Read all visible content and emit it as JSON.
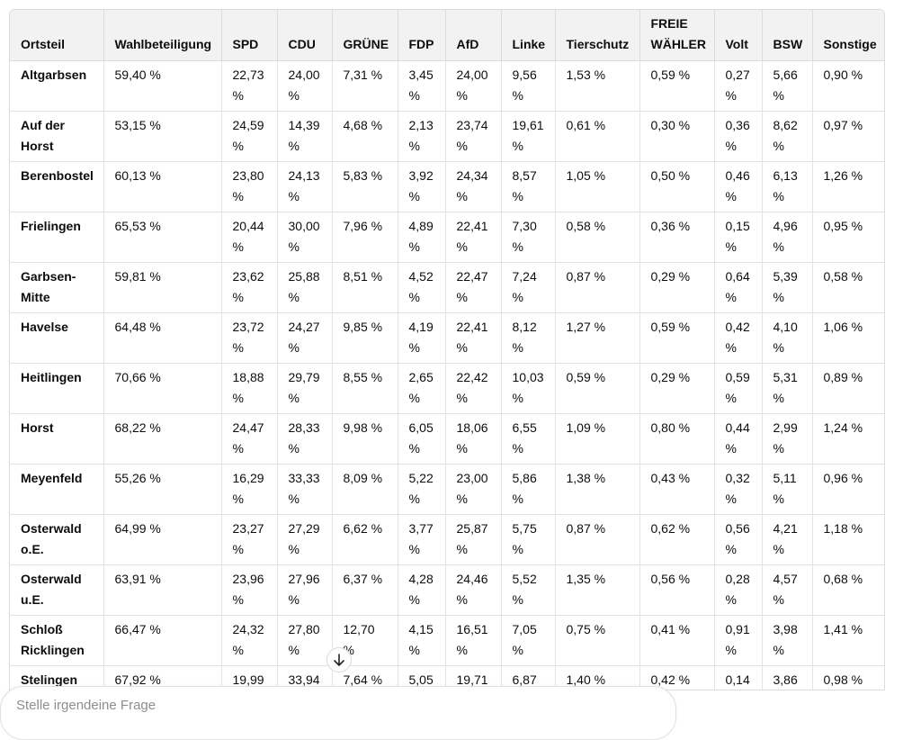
{
  "table": {
    "header": [
      "Ortsteil",
      "Wahlbeteiligung",
      "SPD",
      "CDU",
      "GRÜNE",
      "FDP",
      "AfD",
      "Linke",
      "Tierschutz",
      "FREIE WÄHLER",
      "Volt",
      "BSW",
      "Sonstige"
    ],
    "rows": [
      [
        "Altgarbsen",
        "59,40 %",
        "22,73 %",
        "24,00 %",
        "7,31 %",
        "3,45 %",
        "24,00 %",
        "9,56 %",
        "1,53 %",
        "0,59 %",
        "0,27 %",
        "5,66 %",
        "0,90 %"
      ],
      [
        "Auf der Horst",
        "53,15 %",
        "24,59 %",
        "14,39 %",
        "4,68 %",
        "2,13 %",
        "23,74 %",
        "19,61 %",
        "0,61 %",
        "0,30 %",
        "0,36 %",
        "8,62 %",
        "0,97 %"
      ],
      [
        "Berenbostel",
        "60,13 %",
        "23,80 %",
        "24,13 %",
        "5,83 %",
        "3,92 %",
        "24,34 %",
        "8,57 %",
        "1,05 %",
        "0,50 %",
        "0,46 %",
        "6,13 %",
        "1,26 %"
      ],
      [
        "Frielingen",
        "65,53 %",
        "20,44 %",
        "30,00 %",
        "7,96 %",
        "4,89 %",
        "22,41 %",
        "7,30 %",
        "0,58 %",
        "0,36 %",
        "0,15 %",
        "4,96 %",
        "0,95 %"
      ],
      [
        "Garbsen-Mitte",
        "59,81 %",
        "23,62 %",
        "25,88 %",
        "8,51 %",
        "4,52 %",
        "22,47 %",
        "7,24 %",
        "0,87 %",
        "0,29 %",
        "0,64 %",
        "5,39 %",
        "0,58 %"
      ],
      [
        "Havelse",
        "64,48 %",
        "23,72 %",
        "24,27 %",
        "9,85 %",
        "4,19 %",
        "22,41 %",
        "8,12 %",
        "1,27 %",
        "0,59 %",
        "0,42 %",
        "4,10 %",
        "1,06 %"
      ],
      [
        "Heitlingen",
        "70,66 %",
        "18,88 %",
        "29,79 %",
        "8,55 %",
        "2,65 %",
        "22,42 %",
        "10,03 %",
        "0,59 %",
        "0,29 %",
        "0,59 %",
        "5,31 %",
        "0,89 %"
      ],
      [
        "Horst",
        "68,22 %",
        "24,47 %",
        "28,33 %",
        "9,98 %",
        "6,05 %",
        "18,06 %",
        "6,55 %",
        "1,09 %",
        "0,80 %",
        "0,44 %",
        "2,99 %",
        "1,24 %"
      ],
      [
        "Meyenfeld",
        "55,26 %",
        "16,29 %",
        "33,33 %",
        "8,09 %",
        "5,22 %",
        "23,00 %",
        "5,86 %",
        "1,38 %",
        "0,43 %",
        "0,32 %",
        "5,11 %",
        "0,96 %"
      ],
      [
        "Osterwald o.E.",
        "64,99 %",
        "23,27 %",
        "27,29 %",
        "6,62 %",
        "3,77 %",
        "25,87 %",
        "5,75 %",
        "0,87 %",
        "0,62 %",
        "0,56 %",
        "4,21 %",
        "1,18 %"
      ],
      [
        "Osterwald u.E.",
        "63,91 %",
        "23,96 %",
        "27,96 %",
        "6,37 %",
        "4,28 %",
        "24,46 %",
        "5,52 %",
        "1,35 %",
        "0,56 %",
        "0,28 %",
        "4,57 %",
        "0,68 %"
      ],
      [
        "Schloß Ricklingen",
        "66,47 %",
        "24,32 %",
        "27,80 %",
        "12,70 %",
        "4,15 %",
        "16,51 %",
        "7,05 %",
        "0,75 %",
        "0,41 %",
        "0,91 %",
        "3,98 %",
        "1,41 %"
      ],
      [
        "Stelingen",
        "67,92 %",
        "19,99",
        "33,94",
        "7,64 %",
        "5,05",
        "19,71",
        "6,87",
        "1,40 %",
        "0,42 %",
        "0,14",
        "3,86",
        "0,98 %"
      ]
    ]
  },
  "composer": {
    "placeholder": "Stelle irgendeine Frage"
  }
}
